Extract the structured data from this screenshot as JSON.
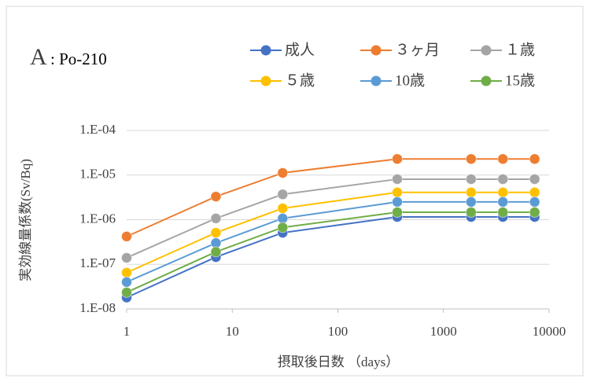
{
  "chart_data": {
    "type": "line",
    "title": "A",
    "subtitle": ": Po-210",
    "x_label": "摂取後日数 （days）",
    "y_label": "実効線量係数(Sv/Bq)",
    "x": [
      1,
      7,
      30,
      365,
      1825,
      3650,
      7300
    ],
    "series": [
      {
        "name": "成人",
        "color": "#4472c4",
        "values": [
          1.8e-08,
          1.45e-07,
          5.1e-07,
          1.15e-06,
          1.15e-06,
          1.15e-06,
          1.15e-06
        ]
      },
      {
        "name": "３ヶ月",
        "color": "#ed7d31",
        "values": [
          4.2e-07,
          3.3e-06,
          1.12e-05,
          2.3e-05,
          2.3e-05,
          2.3e-05,
          2.3e-05
        ]
      },
      {
        "name": "１歳",
        "color": "#a5a5a5",
        "values": [
          1.4e-07,
          1.07e-06,
          3.7e-06,
          8.1e-06,
          8.1e-06,
          8.1e-06,
          8.1e-06
        ]
      },
      {
        "name": "５歳",
        "color": "#ffc000",
        "values": [
          6.5e-08,
          5.1e-07,
          1.8e-06,
          4.1e-06,
          4.1e-06,
          4.1e-06,
          4.1e-06
        ]
      },
      {
        "name": "10歳",
        "color": "#5b9bd5",
        "values": [
          4e-08,
          3e-07,
          1.07e-06,
          2.5e-06,
          2.5e-06,
          2.5e-06,
          2.5e-06
        ]
      },
      {
        "name": "15歳",
        "color": "#70ad47",
        "values": [
          2.35e-08,
          1.9e-07,
          6.7e-07,
          1.47e-06,
          1.47e-06,
          1.47e-06,
          1.47e-06
        ]
      }
    ],
    "xlim": [
      1,
      10000
    ],
    "xticks": [
      1,
      10,
      100,
      1000,
      10000
    ],
    "ylim": [
      1e-08,
      0.0001
    ],
    "yticks": [
      {
        "value": 1e-08,
        "label": "1.E-08"
      },
      {
        "value": 1e-07,
        "label": "1.E-07"
      },
      {
        "value": 1e-06,
        "label": "1.E-06"
      },
      {
        "value": 1e-05,
        "label": "1.E-05"
      },
      {
        "value": 0.0001,
        "label": "1.E-04"
      }
    ],
    "xscale": "log",
    "yscale": "log",
    "grid": true,
    "legend": "top-right"
  }
}
